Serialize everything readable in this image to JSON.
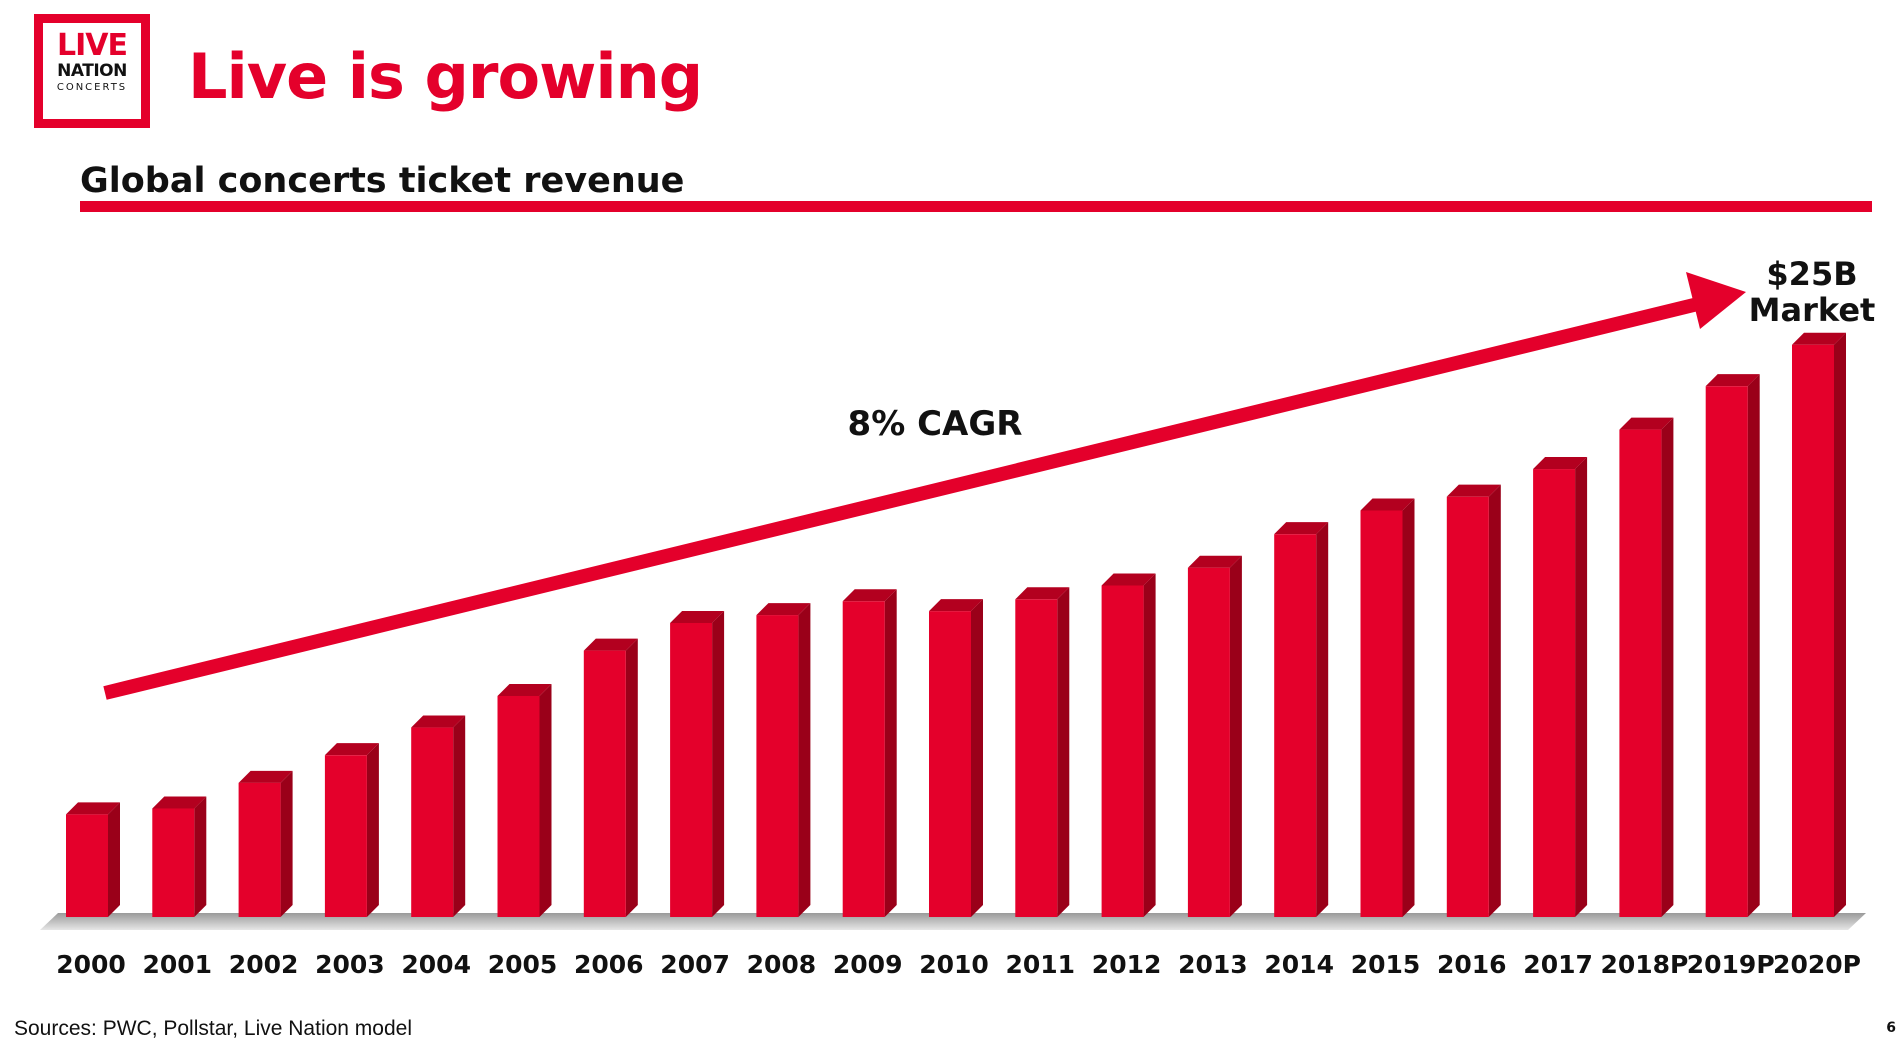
{
  "logo": {
    "line1": "LIVE",
    "line2": "NATION",
    "line3": "CONCERTS"
  },
  "title": "Live is growing",
  "subtitle": "Global concerts ticket revenue",
  "colors": {
    "accent": "#e4002b",
    "bar_side": "#9a0019",
    "bar_top": "#b3001f",
    "text": "#111111"
  },
  "chart_data": {
    "type": "bar",
    "title": "Global concerts ticket revenue",
    "categories": [
      "2000",
      "2001",
      "2002",
      "2003",
      "2004",
      "2005",
      "2006",
      "2007",
      "2008",
      "2009",
      "2010",
      "2011",
      "2012",
      "2013",
      "2014",
      "2015",
      "2016",
      "2017",
      "2018P",
      "2019P",
      "2020P"
    ],
    "values": [
      5.2,
      5.5,
      6.8,
      8.2,
      9.6,
      11.2,
      13.5,
      14.9,
      15.3,
      16.0,
      15.5,
      16.1,
      16.8,
      17.7,
      19.4,
      20.6,
      21.3,
      22.7,
      24.7,
      26.9,
      29.0
    ],
    "value_unit": "approximate relative bar height (no y-axis printed)",
    "ylim": [
      0,
      30
    ],
    "grid": false,
    "annotations": [
      {
        "text": "8% CAGR",
        "kind": "trend-arrow-label"
      },
      {
        "text": "$25B",
        "kind": "end-label-line1"
      },
      {
        "text": "Market",
        "kind": "end-label-line2"
      }
    ]
  },
  "footer": {
    "source": "Sources: PWC, Pollstar, Live Nation model",
    "page_number": "6"
  }
}
